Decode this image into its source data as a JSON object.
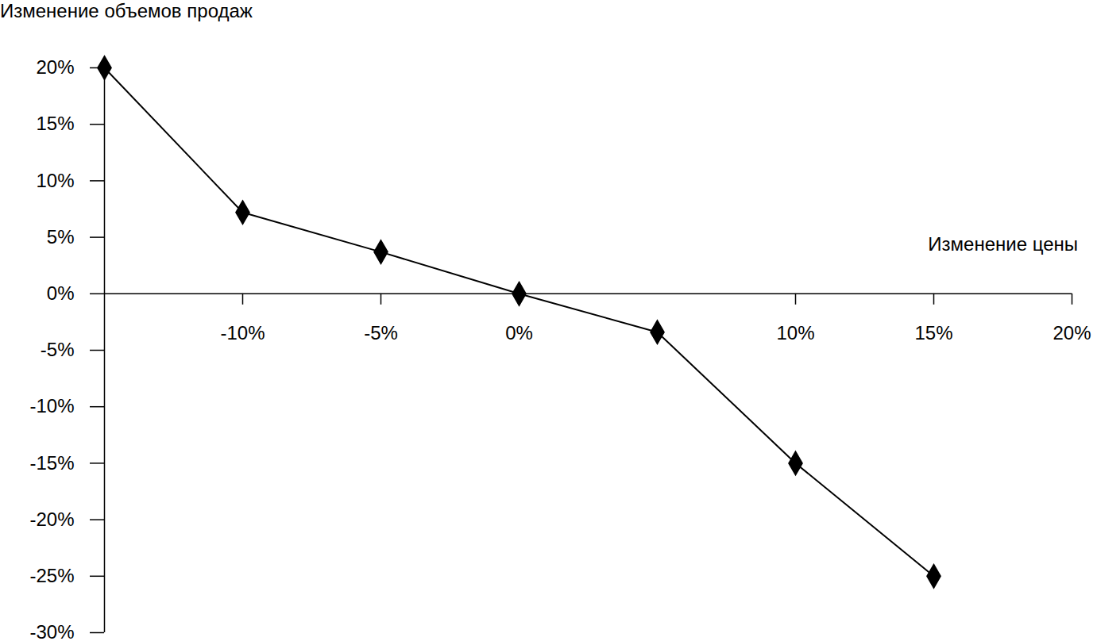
{
  "chart_data": {
    "type": "line",
    "x_label": "Изменение цены",
    "y_label": "Изменение объемов продаж",
    "x": [
      -15,
      -10,
      -5,
      0,
      5,
      10,
      15
    ],
    "values": [
      20,
      7.2,
      3.7,
      0,
      -3.4,
      -15,
      -25
    ],
    "color": "#000000",
    "marker": "diamond",
    "xlim": [
      -15,
      20
    ],
    "xticks": [
      {
        "value": -10,
        "label": "-10%"
      },
      {
        "value": -5,
        "label": "-5%"
      },
      {
        "value": 0,
        "label": "0%"
      },
      {
        "value": 10,
        "label": "10%"
      },
      {
        "value": 15,
        "label": "15%"
      },
      {
        "value": 20,
        "label": "20%"
      }
    ],
    "ylim": [
      -30,
      20
    ],
    "yticks": [
      {
        "value": -30,
        "label": "-30%"
      },
      {
        "value": -25,
        "label": "-25%"
      },
      {
        "value": -20,
        "label": "-20%"
      },
      {
        "value": -15,
        "label": "-15%"
      },
      {
        "value": -10,
        "label": "-10%"
      },
      {
        "value": -5,
        "label": "-5%"
      },
      {
        "value": 0,
        "label": "0%"
      },
      {
        "value": 5,
        "label": "5%"
      },
      {
        "value": 10,
        "label": "10%"
      },
      {
        "value": 15,
        "label": "15%"
      },
      {
        "value": 20,
        "label": "20%"
      }
    ],
    "grid": false
  }
}
